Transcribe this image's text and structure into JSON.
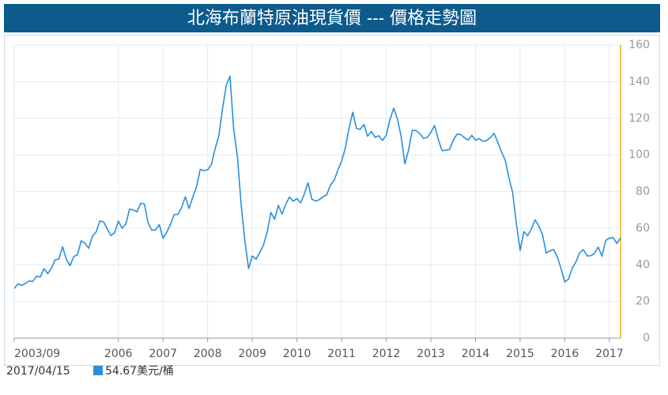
{
  "chart_data": {
    "type": "line",
    "title": "北海布蘭特原油現貨價 --- 價格走勢圖",
    "date_label": "2017/04/15",
    "x": [
      "2003/09",
      "2003/10",
      "2003/11",
      "2003/12",
      "2004/01",
      "2004/02",
      "2004/03",
      "2004/04",
      "2004/05",
      "2004/06",
      "2004/07",
      "2004/08",
      "2004/09",
      "2004/10",
      "2004/11",
      "2004/12",
      "2005/01",
      "2005/02",
      "2005/03",
      "2005/04",
      "2005/05",
      "2005/06",
      "2005/07",
      "2005/08",
      "2005/09",
      "2005/10",
      "2005/11",
      "2005/12",
      "2006/01",
      "2006/02",
      "2006/03",
      "2006/04",
      "2006/05",
      "2006/06",
      "2006/07",
      "2006/08",
      "2006/09",
      "2006/10",
      "2006/11",
      "2006/12",
      "2007/01",
      "2007/02",
      "2007/03",
      "2007/04",
      "2007/05",
      "2007/06",
      "2007/07",
      "2007/08",
      "2007/09",
      "2007/10",
      "2007/11",
      "2007/12",
      "2008/01",
      "2008/02",
      "2008/03",
      "2008/04",
      "2008/05",
      "2008/06",
      "2008/07",
      "2008/08",
      "2008/09",
      "2008/10",
      "2008/11",
      "2008/12",
      "2009/01",
      "2009/02",
      "2009/03",
      "2009/04",
      "2009/05",
      "2009/06",
      "2009/07",
      "2009/08",
      "2009/09",
      "2009/10",
      "2009/11",
      "2009/12",
      "2010/01",
      "2010/02",
      "2010/03",
      "2010/04",
      "2010/05",
      "2010/06",
      "2010/07",
      "2010/08",
      "2010/09",
      "2010/10",
      "2010/11",
      "2010/12",
      "2011/01",
      "2011/02",
      "2011/03",
      "2011/04",
      "2011/05",
      "2011/06",
      "2011/07",
      "2011/08",
      "2011/09",
      "2011/10",
      "2011/11",
      "2011/12",
      "2012/01",
      "2012/02",
      "2012/03",
      "2012/04",
      "2012/05",
      "2012/06",
      "2012/07",
      "2012/08",
      "2012/09",
      "2012/10",
      "2012/11",
      "2012/12",
      "2013/01",
      "2013/02",
      "2013/03",
      "2013/04",
      "2013/05",
      "2013/06",
      "2013/07",
      "2013/08",
      "2013/09",
      "2013/10",
      "2013/11",
      "2013/12",
      "2014/01",
      "2014/02",
      "2014/03",
      "2014/04",
      "2014/05",
      "2014/06",
      "2014/07",
      "2014/08",
      "2014/09",
      "2014/10",
      "2014/11",
      "2014/12",
      "2015/01",
      "2015/02",
      "2015/03",
      "2015/04",
      "2015/05",
      "2015/06",
      "2015/07",
      "2015/08",
      "2015/09",
      "2015/10",
      "2015/11",
      "2015/12",
      "2016/01",
      "2016/02",
      "2016/03",
      "2016/04",
      "2016/05",
      "2016/06",
      "2016/07",
      "2016/08",
      "2016/09",
      "2016/10",
      "2016/11",
      "2016/12",
      "2017/01",
      "2017/02",
      "2017/03",
      "2017/04"
    ],
    "series": [
      {
        "name": "美元/桶",
        "color": "#2a8fdd",
        "values": [
          27.1,
          29.6,
          28.8,
          29.8,
          31.2,
          30.9,
          33.8,
          33.4,
          37.9,
          35.2,
          38.2,
          42.7,
          43.2,
          49.8,
          43.1,
          39.6,
          44.5,
          45.5,
          53.1,
          51.9,
          49.0,
          55.6,
          57.9,
          63.9,
          63.5,
          59.6,
          56.0,
          57.6,
          63.9,
          60.0,
          62.3,
          70.4,
          70.0,
          68.9,
          73.6,
          73.2,
          62.8,
          58.9,
          59.1,
          62.0,
          54.5,
          57.8,
          62.1,
          67.4,
          67.5,
          71.3,
          77.2,
          70.8,
          77.0,
          82.5,
          92.1,
          91.5,
          91.9,
          94.8,
          103.3,
          110.4,
          125.4,
          138.0,
          143.0,
          113.9,
          99.1,
          72.8,
          53.2,
          38.0,
          44.9,
          43.1,
          46.8,
          50.8,
          57.9,
          68.6,
          64.9,
          72.5,
          67.7,
          73.2,
          77.0,
          74.7,
          76.2,
          73.8,
          78.8,
          84.8,
          75.9,
          74.8,
          75.6,
          77.1,
          78.2,
          83.5,
          86.1,
          91.8,
          96.5,
          103.7,
          114.6,
          123.3,
          114.5,
          113.9,
          116.7,
          110.2,
          112.8,
          109.6,
          110.5,
          107.9,
          110.7,
          119.3,
          125.5,
          119.8,
          110.3,
          95.2,
          102.6,
          113.4,
          113.4,
          111.7,
          109.1,
          109.5,
          112.3,
          116.1,
          108.5,
          102.3,
          102.6,
          102.9,
          107.9,
          111.3,
          111.2,
          109.5,
          108.1,
          110.7,
          108.1,
          108.9,
          107.5,
          107.8,
          109.5,
          111.8,
          106.8,
          101.6,
          97.1,
          87.4,
          79.4,
          62.3,
          47.8,
          58.1,
          55.9,
          59.5,
          64.6,
          61.3,
          56.6,
          46.5,
          47.6,
          48.4,
          44.3,
          38.0,
          30.7,
          32.2,
          38.2,
          41.6,
          46.7,
          48.3,
          44.9,
          45.0,
          46.2,
          49.7,
          44.7,
          53.3,
          54.6,
          54.9,
          51.6,
          54.67
        ]
      }
    ],
    "xlim": [
      "2003/09",
      "2017/04"
    ],
    "xticks": [
      "2003/09",
      2006,
      2007,
      2008,
      2009,
      2010,
      2011,
      2012,
      2013,
      2014,
      2015,
      2016,
      2017
    ],
    "ylim": [
      0,
      160
    ],
    "yticks": [
      0,
      20,
      40,
      60,
      80,
      100,
      120,
      140,
      160
    ],
    "grid": true
  }
}
